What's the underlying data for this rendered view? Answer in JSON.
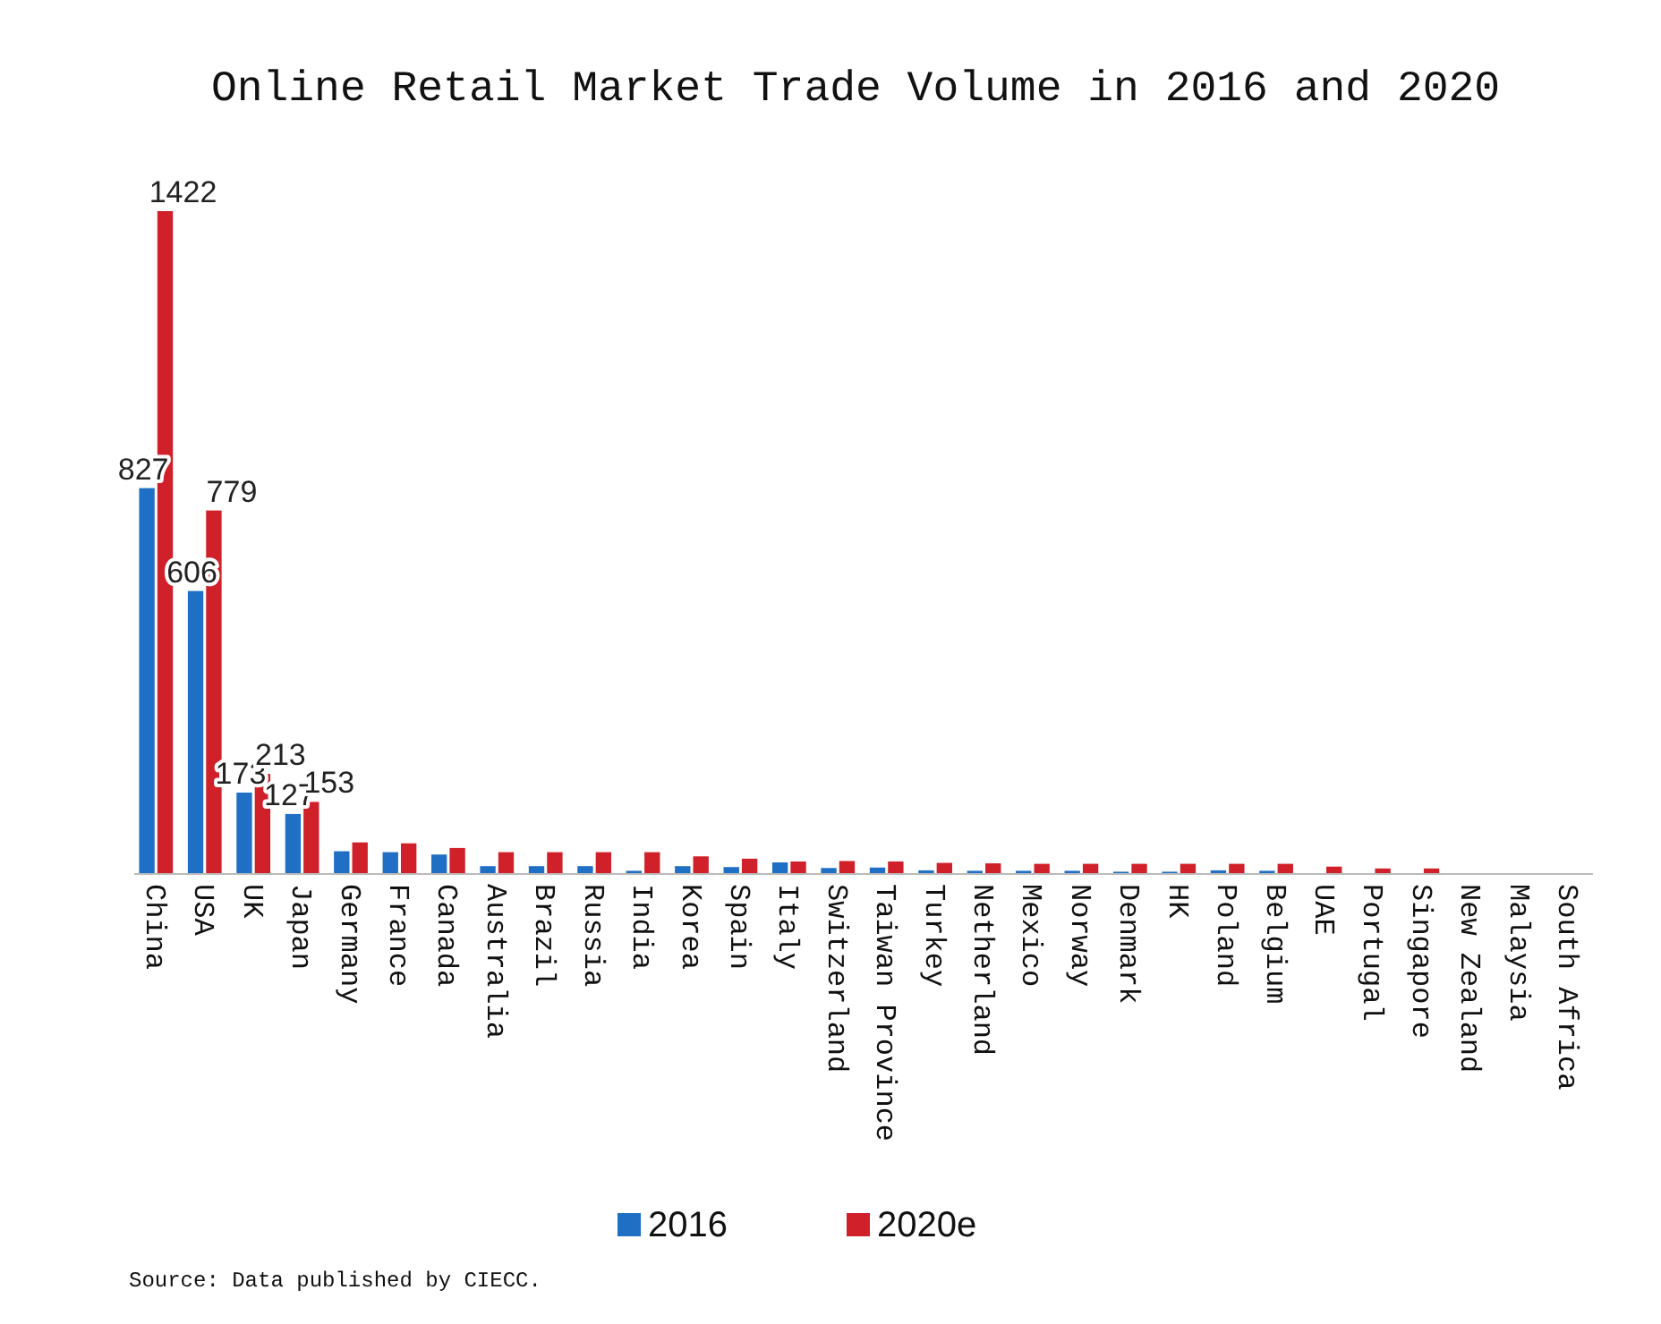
{
  "chart_data": {
    "type": "bar",
    "title": "Online Retail Market Trade Volume in 2016 and 2020",
    "categories": [
      "China",
      "USA",
      "UK",
      "Japan",
      "Germany",
      "France",
      "Canada",
      "Australia",
      "Brazil",
      "Russia",
      "India",
      "Korea",
      "Spain",
      "Italy",
      "Switzerland",
      "Taiwan Province",
      "Turkey",
      "Netherland",
      "Mexico",
      "Norway",
      "Denmark",
      "HK",
      "Poland",
      "Belgium",
      "UAE",
      "Portugal",
      "Singapore",
      "New Zealand",
      "Malaysia",
      "South Africa"
    ],
    "series": [
      {
        "name": "2016",
        "color": "#1f6fc5",
        "values": [
          827,
          606,
          173,
          127,
          47,
          45,
          40,
          15,
          15,
          15,
          5,
          15,
          13,
          23,
          11,
          12,
          6,
          5,
          5,
          5,
          3,
          3,
          6,
          5,
          null,
          null,
          null,
          0,
          0,
          0
        ],
        "value_labels": [
          "827",
          "606",
          "173",
          "127",
          null,
          null,
          null,
          null,
          null,
          null,
          null,
          null,
          null,
          null,
          null,
          null,
          null,
          null,
          null,
          null,
          null,
          null,
          null,
          null,
          null,
          null,
          null,
          null,
          null,
          null
        ]
      },
      {
        "name": "2020e",
        "color": "#d0202a",
        "values": [
          1422,
          779,
          213,
          153,
          66,
          64,
          54,
          45,
          45,
          45,
          45,
          36,
          31,
          25,
          26,
          25,
          22,
          21,
          20,
          20,
          20,
          20,
          20,
          20,
          14,
          10,
          10,
          0,
          0,
          0
        ],
        "value_labels": [
          "1422",
          "779",
          "213",
          "153",
          null,
          null,
          null,
          null,
          null,
          null,
          null,
          null,
          null,
          null,
          null,
          null,
          null,
          null,
          null,
          null,
          null,
          null,
          null,
          null,
          null,
          null,
          null,
          null,
          null,
          null
        ]
      }
    ],
    "legend": "bottom",
    "annotations": [
      "Source: Data published by CIECC."
    ]
  }
}
